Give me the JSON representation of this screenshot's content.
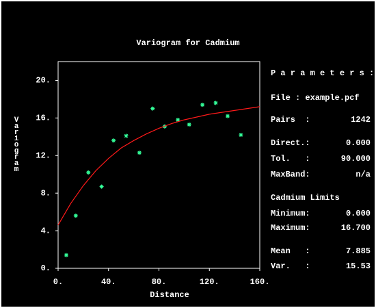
{
  "chart_data": {
    "type": "scatter",
    "title": "Variogram for Cadmium",
    "xlabel": "Distance",
    "ylabel": "Variogram",
    "xlim": [
      0,
      160
    ],
    "ylim": [
      0,
      22
    ],
    "xticks": [
      {
        "value": 0,
        "label": "0."
      },
      {
        "value": 40,
        "label": "40."
      },
      {
        "value": 80,
        "label": "80."
      },
      {
        "value": 120,
        "label": "120."
      },
      {
        "value": 160,
        "label": "160."
      }
    ],
    "yticks": [
      {
        "value": 0,
        "label": "0."
      },
      {
        "value": 4,
        "label": "4."
      },
      {
        "value": 8,
        "label": "8."
      },
      {
        "value": 12,
        "label": "12."
      },
      {
        "value": 16,
        "label": "16."
      },
      {
        "value": 20,
        "label": "20."
      }
    ],
    "series": [
      {
        "color": "#33ff99",
        "x": [
          6.5,
          14,
          24,
          34.5,
          44,
          54,
          64.5,
          75,
          84.5,
          95,
          104,
          114.5,
          125,
          134.5,
          145
        ],
        "values": [
          1.4,
          5.6,
          10.2,
          8.7,
          13.6,
          14.1,
          12.3,
          17.0,
          15.1,
          15.8,
          15.3,
          17.4,
          17.6,
          16.2,
          14.2
        ]
      },
      {
        "type": "line",
        "color": "#ff1a1a",
        "x": [
          0,
          10,
          20,
          30,
          40,
          50,
          60,
          70,
          80,
          90,
          100,
          110,
          120,
          130,
          140,
          150,
          160
        ],
        "values": [
          4.6,
          6.9,
          8.8,
          10.4,
          11.7,
          12.8,
          13.6,
          14.3,
          14.9,
          15.4,
          15.8,
          16.1,
          16.4,
          16.6,
          16.8,
          17.0,
          17.2
        ]
      }
    ],
    "parameters_title": "P a r a m e t e r s :",
    "parameters": [
      {
        "text": "File : example.pcf"
      },
      {
        "label": "Pairs  :",
        "value": "1242"
      },
      {
        "label": "Direct.:",
        "value": "0.000"
      },
      {
        "label": "Tol.   :",
        "value": "90.000"
      },
      {
        "label": "MaxBand:",
        "value": "n/a"
      },
      {
        "text": "Cadmium Limits"
      },
      {
        "label": "Minimum:",
        "value": "0.000"
      },
      {
        "label": "Maximum:",
        "value": "16.700"
      },
      {
        "label": "Mean   :",
        "value": "7.885"
      },
      {
        "label": "Var.   :",
        "value": "15.53"
      }
    ]
  }
}
